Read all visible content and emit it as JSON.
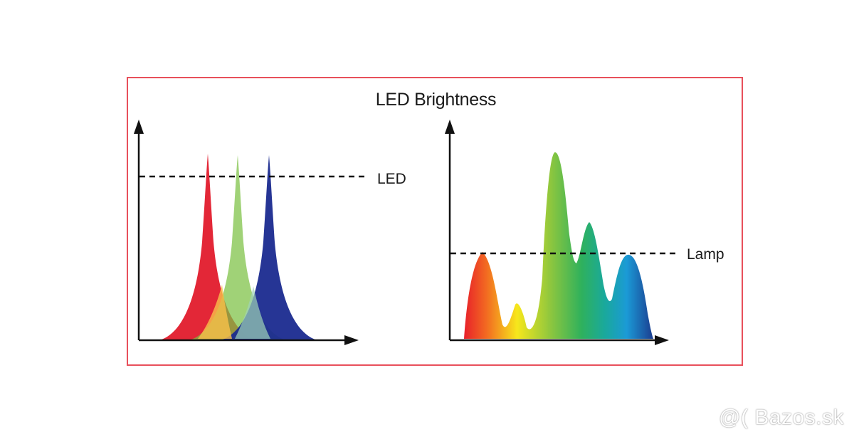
{
  "diagram": {
    "title": "LED Brightness",
    "left_panel": {
      "threshold_label": "LED"
    },
    "right_panel": {
      "threshold_label": "Lamp"
    },
    "colors": {
      "frame": "#e8505b",
      "led_red": "#e21b2c",
      "led_green": "#7cc142",
      "led_blue": "#1a2a8f"
    }
  },
  "watermark": "@( Bazos.sk"
}
